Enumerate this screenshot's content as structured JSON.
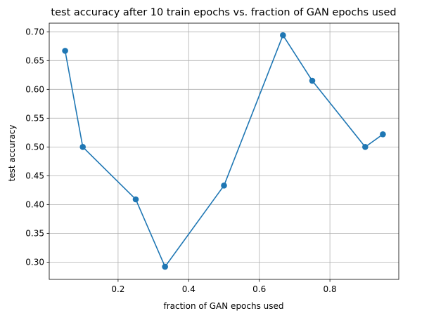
{
  "chart_data": {
    "type": "line",
    "title": "test accuracy after 10 train epochs vs. fraction of GAN epochs used",
    "xlabel": "fraction of GAN epochs used",
    "ylabel": "test accuracy",
    "xlim": [
      0.005,
      0.995
    ],
    "ylim": [
      0.27,
      0.715
    ],
    "xticks": [
      0.2,
      0.4,
      0.6,
      0.8
    ],
    "xtick_labels": [
      "0.2",
      "0.4",
      "0.6",
      "0.8"
    ],
    "yticks": [
      0.3,
      0.35,
      0.4,
      0.45,
      0.5,
      0.55,
      0.6,
      0.65,
      0.7
    ],
    "ytick_labels": [
      "0.30",
      "0.35",
      "0.40",
      "0.45",
      "0.50",
      "0.55",
      "0.60",
      "0.65",
      "0.70"
    ],
    "grid": true,
    "color": "#1f77b4",
    "series": [
      {
        "x": [
          0.05,
          0.1,
          0.25,
          0.333,
          0.5,
          0.667,
          0.75,
          0.9,
          0.95
        ],
        "y": [
          0.667,
          0.5,
          0.409,
          0.292,
          0.433,
          0.694,
          0.615,
          0.5,
          0.522
        ]
      }
    ]
  }
}
